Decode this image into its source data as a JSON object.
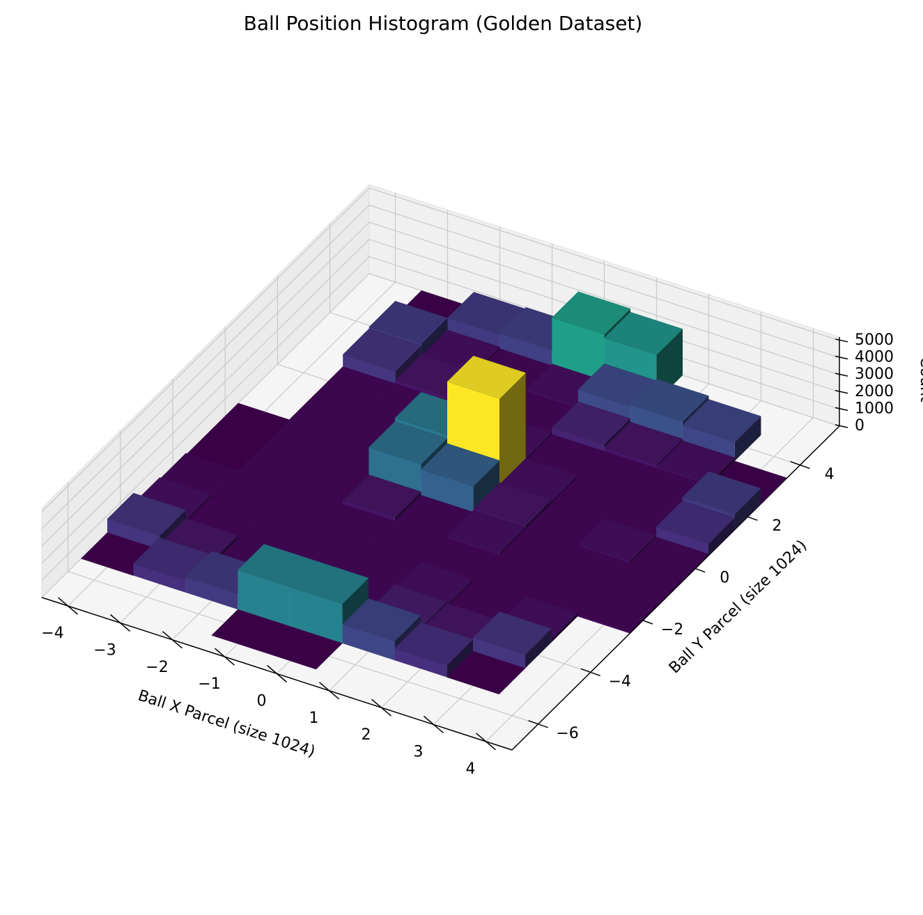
{
  "chart_data": {
    "type": "bar3d",
    "title": "Ball Position Histogram (Golden Dataset)",
    "x_label": "Ball X Parcel (size 1024)",
    "y_label": "Ball Y Parcel (size 1024)",
    "z_label": "Count",
    "colormap": "viridis",
    "grid": true,
    "x_edges": [
      -4.5,
      -3.5,
      -2.5,
      -1.5,
      -0.5,
      0.5,
      1.5,
      2.5,
      3.5,
      4.5
    ],
    "y_edges": [
      -6.5,
      -5.5,
      -4.5,
      -3.5,
      -2.5,
      -1.5,
      -0.5,
      0.5,
      1.5,
      2.5,
      3.5,
      4.5,
      5.5
    ],
    "counts": [
      [
        null,
        null,
        null,
        0,
        0,
        null,
        null,
        null,
        null
      ],
      [
        0,
        700,
        900,
        2300,
        2300,
        1100,
        700,
        0,
        null
      ],
      [
        800,
        300,
        100,
        200,
        100,
        400,
        300,
        800,
        null
      ],
      [
        200,
        100,
        100,
        100,
        100,
        200,
        100,
        200,
        null
      ],
      [
        100,
        100,
        100,
        100,
        100,
        100,
        100,
        100,
        100
      ],
      [
        0,
        100,
        100,
        300,
        100,
        200,
        100,
        100,
        100
      ],
      [
        0,
        100,
        100,
        1900,
        1600,
        300,
        100,
        200,
        100
      ],
      [
        null,
        100,
        100,
        2100,
        5200,
        200,
        100,
        100,
        700
      ],
      [
        null,
        100,
        100,
        300,
        200,
        100,
        100,
        100,
        900
      ],
      [
        null,
        800,
        300,
        100,
        100,
        500,
        300,
        200,
        0
      ],
      [
        null,
        900,
        200,
        100,
        200,
        1200,
        1300,
        1100,
        null
      ],
      [
        null,
        0,
        900,
        1000,
        2900,
        2700,
        null,
        null,
        null
      ]
    ],
    "xlim": [
      -4.5,
      4.5
    ],
    "ylim": [
      -7,
      5.5
    ],
    "zlim": [
      0,
      5200
    ],
    "xticks": [
      {
        "value": -4,
        "label": "−4"
      },
      {
        "value": -3,
        "label": "−3"
      },
      {
        "value": -2,
        "label": "−2"
      },
      {
        "value": -1,
        "label": "−1"
      },
      0,
      1,
      2,
      3,
      4
    ],
    "yticks": [
      {
        "value": -6,
        "label": "−6"
      },
      {
        "value": -4,
        "label": "−4"
      },
      {
        "value": -2,
        "label": "−2"
      },
      0,
      2,
      4
    ],
    "zticks": [
      0,
      1000,
      2000,
      3000,
      4000,
      5000
    ]
  }
}
